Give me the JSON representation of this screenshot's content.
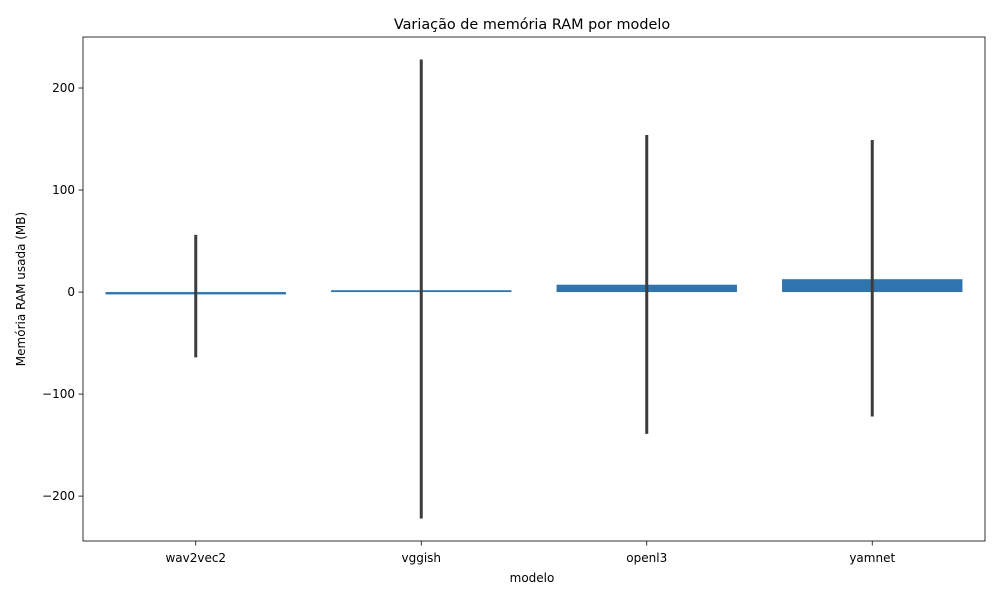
{
  "chart_data": {
    "type": "bar",
    "title": "Variação de memória RAM por modelo",
    "xlabel": "modelo",
    "ylabel": "Memória RAM usada (MB)",
    "categories": [
      "wav2vec2",
      "vggish",
      "openl3",
      "yamnet"
    ],
    "values": [
      -2.3,
      1.8,
      7.2,
      12.6
    ],
    "error_low": [
      -64,
      -222,
      -139,
      -122
    ],
    "error_high": [
      56,
      228,
      154,
      149
    ],
    "ylim": [
      -244,
      250
    ],
    "yticks": [
      -200,
      -100,
      0,
      100,
      200
    ],
    "ytick_labels": [
      "−200",
      "−100",
      "0",
      "100",
      "200"
    ],
    "grid": false,
    "legend": "none",
    "bar_color": "#2f74ac",
    "error_color": "#3d3d3d"
  }
}
